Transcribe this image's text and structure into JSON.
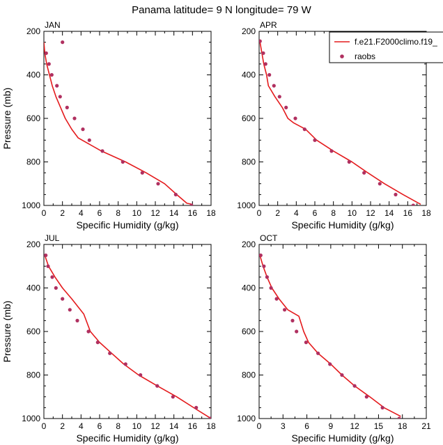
{
  "figure": {
    "title": "Panama  latitude= 9 N longitude= 79 W"
  },
  "legend": {
    "entries": [
      {
        "label": "f.e21.F2000climo.f19_",
        "style": "line",
        "color": "#e41a1c"
      },
      {
        "label": "raobs",
        "style": "marker",
        "color": "#b03060"
      }
    ],
    "placement": "top-right, attached to APR panel"
  },
  "chart_data": [
    {
      "type": "line",
      "panel": "JAN",
      "xlabel": "Specific Humidity (g/kg)",
      "ylabel": "Pressure (mb)",
      "xlim": [
        0,
        18
      ],
      "ylim": [
        1000,
        200
      ],
      "y_reversed": true,
      "x_ticks": [
        0,
        2,
        4,
        6,
        8,
        10,
        12,
        14,
        16,
        18
      ],
      "y_ticks": [
        200,
        400,
        600,
        800,
        1000
      ],
      "series": [
        {
          "name": "f.e21.F2000climo.f19_",
          "style": "line",
          "points": [
            [
              0.0,
              250
            ],
            [
              0.1,
              300
            ],
            [
              0.3,
              350
            ],
            [
              0.6,
              400
            ],
            [
              0.9,
              450
            ],
            [
              1.3,
              500
            ],
            [
              1.8,
              550
            ],
            [
              2.3,
              600
            ],
            [
              3.0,
              650
            ],
            [
              3.7,
              690
            ],
            [
              6.2,
              750
            ],
            [
              8.8,
              800
            ],
            [
              11.0,
              850
            ],
            [
              13.0,
              900
            ],
            [
              14.3,
              950
            ],
            [
              15.4,
              990
            ],
            [
              16.0,
              995
            ]
          ]
        },
        {
          "name": "raobs",
          "style": "marker",
          "points": [
            [
              2.0,
              250
            ],
            [
              0.25,
              300
            ],
            [
              0.55,
              350
            ],
            [
              0.85,
              400
            ],
            [
              1.4,
              450
            ],
            [
              1.75,
              500
            ],
            [
              2.5,
              550
            ],
            [
              3.3,
              600
            ],
            [
              4.2,
              650
            ],
            [
              4.9,
              700
            ],
            [
              6.3,
              750
            ],
            [
              8.5,
              800
            ],
            [
              10.6,
              850
            ],
            [
              12.3,
              900
            ],
            [
              14.2,
              950
            ],
            [
              15.9,
              1000
            ]
          ]
        }
      ]
    },
    {
      "type": "line",
      "panel": "APR",
      "xlabel": "Specific Humidity (g/kg)",
      "ylabel": "Pressure (mb)",
      "xlim": [
        0,
        18
      ],
      "ylim": [
        1000,
        200
      ],
      "y_reversed": true,
      "x_ticks": [
        0,
        2,
        4,
        6,
        8,
        10,
        12,
        14,
        16,
        18
      ],
      "y_ticks": [
        200,
        400,
        600,
        800,
        1000
      ],
      "series": [
        {
          "name": "f.e21.F2000climo.f19_",
          "style": "line",
          "points": [
            [
              0.1,
              250
            ],
            [
              0.3,
              300
            ],
            [
              0.5,
              350
            ],
            [
              0.8,
              400
            ],
            [
              1.0,
              450
            ],
            [
              1.7,
              500
            ],
            [
              2.5,
              550
            ],
            [
              3.1,
              600
            ],
            [
              3.7,
              620
            ],
            [
              5.0,
              650
            ],
            [
              6.2,
              700
            ],
            [
              8.0,
              750
            ],
            [
              10.0,
              800
            ],
            [
              11.7,
              850
            ],
            [
              13.5,
              900
            ],
            [
              15.5,
              950
            ],
            [
              17.4,
              995
            ]
          ]
        },
        {
          "name": "raobs",
          "style": "marker",
          "points": [
            [
              0.1,
              245
            ],
            [
              0.45,
              300
            ],
            [
              0.7,
              350
            ],
            [
              1.1,
              400
            ],
            [
              1.6,
              450
            ],
            [
              2.2,
              500
            ],
            [
              2.9,
              550
            ],
            [
              3.9,
              600
            ],
            [
              4.9,
              650
            ],
            [
              6.0,
              700
            ],
            [
              7.8,
              750
            ],
            [
              9.7,
              800
            ],
            [
              11.3,
              850
            ],
            [
              13.0,
              900
            ],
            [
              14.7,
              950
            ],
            [
              16.6,
              1000
            ]
          ]
        }
      ]
    },
    {
      "type": "line",
      "panel": "JUL",
      "xlabel": "Specific Humidity (g/kg)",
      "ylabel": "Pressure (mb)",
      "xlim": [
        0,
        18
      ],
      "ylim": [
        1000,
        200
      ],
      "y_reversed": true,
      "x_ticks": [
        0,
        2,
        4,
        6,
        8,
        10,
        12,
        14,
        16,
        18
      ],
      "y_ticks": [
        200,
        400,
        600,
        800,
        1000
      ],
      "series": [
        {
          "name": "f.e21.F2000climo.f19_",
          "style": "line",
          "points": [
            [
              0.1,
              250
            ],
            [
              0.5,
              300
            ],
            [
              1.2,
              350
            ],
            [
              2.0,
              400
            ],
            [
              3.0,
              450
            ],
            [
              4.3,
              520
            ],
            [
              5.0,
              600
            ],
            [
              6.0,
              650
            ],
            [
              7.3,
              700
            ],
            [
              8.6,
              750
            ],
            [
              10.2,
              800
            ],
            [
              12.2,
              850
            ],
            [
              14.3,
              900
            ],
            [
              16.5,
              960
            ],
            [
              18.0,
              1000
            ]
          ]
        },
        {
          "name": "raobs",
          "style": "marker",
          "points": [
            [
              0.2,
              250
            ],
            [
              0.45,
              300
            ],
            [
              0.9,
              350
            ],
            [
              1.3,
              400
            ],
            [
              2.0,
              450
            ],
            [
              2.8,
              500
            ],
            [
              3.6,
              550
            ],
            [
              4.8,
              600
            ],
            [
              5.8,
              650
            ],
            [
              7.1,
              700
            ],
            [
              8.8,
              750
            ],
            [
              10.4,
              800
            ],
            [
              12.2,
              850
            ],
            [
              13.9,
              900
            ],
            [
              16.4,
              950
            ],
            [
              17.9,
              1000
            ]
          ]
        }
      ]
    },
    {
      "type": "line",
      "panel": "OCT",
      "xlabel": "Specific Humidity (g/kg)",
      "ylabel": "Pressure (mb)",
      "xlim": [
        0,
        21
      ],
      "ylim": [
        1000,
        200
      ],
      "y_reversed": true,
      "x_ticks": [
        0,
        3,
        6,
        9,
        12,
        15,
        18,
        21
      ],
      "y_ticks": [
        200,
        400,
        600,
        800,
        1000
      ],
      "series": [
        {
          "name": "f.e21.F2000climo.f19_",
          "style": "line",
          "points": [
            [
              0.1,
              250
            ],
            [
              0.5,
              300
            ],
            [
              1.0,
              350
            ],
            [
              1.6,
              400
            ],
            [
              2.5,
              450
            ],
            [
              3.6,
              500
            ],
            [
              5.0,
              530
            ],
            [
              5.6,
              600
            ],
            [
              6.2,
              650
            ],
            [
              7.4,
              700
            ],
            [
              9.0,
              750
            ],
            [
              10.4,
              800
            ],
            [
              12.0,
              850
            ],
            [
              13.9,
              900
            ],
            [
              15.7,
              950
            ],
            [
              17.8,
              990
            ]
          ]
        },
        {
          "name": "raobs",
          "style": "marker",
          "points": [
            [
              0.2,
              250
            ],
            [
              0.6,
              300
            ],
            [
              1.0,
              350
            ],
            [
              1.5,
              400
            ],
            [
              2.2,
              450
            ],
            [
              3.2,
              500
            ],
            [
              4.2,
              550
            ],
            [
              4.7,
              600
            ],
            [
              5.9,
              650
            ],
            [
              7.4,
              700
            ],
            [
              8.9,
              750
            ],
            [
              10.4,
              800
            ],
            [
              12.0,
              850
            ],
            [
              13.5,
              900
            ],
            [
              15.5,
              950
            ],
            [
              17.6,
              1000
            ]
          ]
        }
      ]
    }
  ]
}
